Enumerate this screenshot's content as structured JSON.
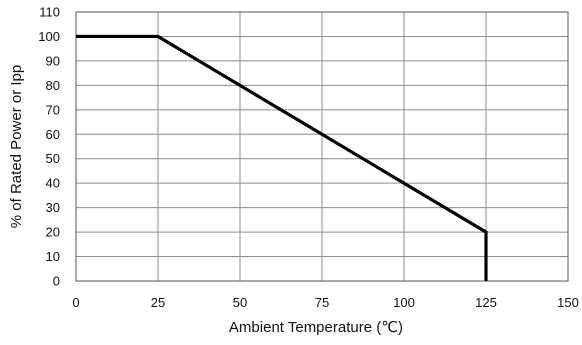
{
  "chart_data": {
    "type": "line",
    "title": "",
    "xlabel": "Ambient Temperature (℃)",
    "ylabel": "% of Rated Power or Ipp",
    "xlim": [
      0,
      150
    ],
    "ylim": [
      0,
      110
    ],
    "xticks": [
      0,
      25,
      50,
      75,
      100,
      125,
      150
    ],
    "yticks": [
      0,
      10,
      20,
      30,
      40,
      50,
      60,
      70,
      80,
      90,
      100,
      110
    ],
    "xtick_labels": [
      "0",
      "25",
      "50",
      "75",
      "100",
      "125",
      "150"
    ],
    "ytick_labels": [
      "0",
      "10",
      "20",
      "30",
      "40",
      "50",
      "60",
      "70",
      "80",
      "90",
      "100",
      "110"
    ],
    "grid": true,
    "series": [
      {
        "x": [
          0,
          25,
          125,
          125
        ],
        "y": [
          100,
          100,
          20,
          0
        ],
        "color": "#000000"
      }
    ]
  }
}
